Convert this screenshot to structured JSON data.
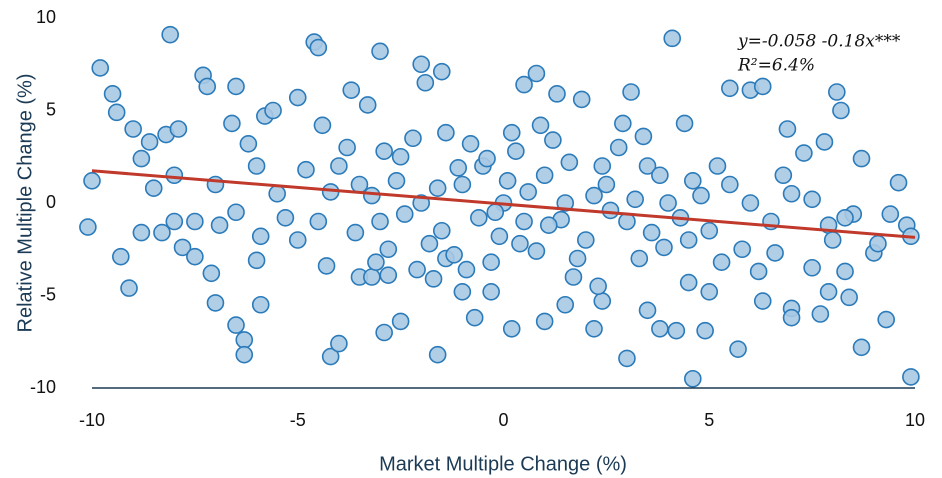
{
  "chart_data": {
    "type": "scatter",
    "x_label": "Market Multiple Change  (%)",
    "y_label": "Relative Multiple Change  (%)",
    "annotations": [
      "y=-0.058 -0.18x***",
      "R²=6.4%"
    ],
    "trendline": {
      "intercept": -0.058,
      "slope": -0.18,
      "color": "#c0392b"
    },
    "point_fill": "#a9c9e4",
    "point_stroke": "#2b7bba",
    "axis_color": "#1b3a55",
    "xlim": [
      -10,
      10
    ],
    "xticks": [
      -10,
      -5,
      0,
      5,
      10
    ],
    "ylim": [
      -10,
      10
    ],
    "yticks": [
      -10,
      -5,
      0,
      5,
      10
    ],
    "grid": false,
    "x": [
      -10,
      -10.1,
      -9.8,
      -9.5,
      -9.4,
      -9.3,
      -9.1,
      -9,
      -8.8,
      -8.8,
      -8.5,
      -8.3,
      -8.2,
      -8.1,
      -8,
      -7.9,
      -7.8,
      -7.5,
      -7.3,
      -7.2,
      -7.1,
      -7,
      -6.9,
      -6.6,
      -6.5,
      -6.5,
      -6.3,
      -6.3,
      -6,
      -5.9,
      -5.8,
      -5.6,
      -5,
      -4.6,
      -4.5,
      -4.3,
      -4.2,
      -4,
      -3.7,
      -3.5,
      -3.2,
      -3,
      -2.9,
      -2.8,
      -2.5,
      -2,
      -1.9,
      -1.7,
      -1.6,
      -1.5,
      -1.4,
      -1,
      -0.7,
      -0.3,
      0.2,
      0.5,
      0.8,
      1,
      1.3,
      1.5,
      1.9,
      2.2,
      2.4,
      3,
      3.1,
      3.5,
      3.8,
      4.1,
      4.2,
      4.5,
      4.6,
      4.9,
      5,
      5.3,
      5.5,
      5.7,
      6,
      6.3,
      6.3,
      6.6,
      6.9,
      7,
      7,
      7.3,
      7.5,
      7.7,
      7.8,
      7.9,
      8.1,
      8.2,
      8.3,
      8.4,
      8.5,
      8.7,
      8.7,
      9,
      9.1,
      9.3,
      9.4,
      9.6,
      9.8,
      9.9,
      9.9,
      8.3,
      7.9,
      7.5,
      -4,
      -3.5,
      -3,
      -2.5,
      -2,
      -1.5,
      -1,
      -0.5,
      0,
      0.5,
      1,
      1.5,
      2,
      2.5,
      3,
      3.5,
      4,
      4.5,
      -4.5,
      -3.8,
      -2.8,
      -2.2,
      -1.2,
      -0.8,
      0.3,
      0.8,
      1.2,
      1.8,
      2.8,
      3.3,
      3.8,
      4.3,
      -5.5,
      -5,
      -6,
      -6.5,
      -7,
      -7.5,
      5.5,
      5,
      6,
      6.5,
      7,
      5.8,
      -0.2,
      0.6,
      -0.6,
      1.4,
      -1.6,
      2.2,
      -2.4,
      3.2,
      -3.2,
      4.6,
      -4.2,
      0.1,
      -0.1,
      1.1,
      -1.1,
      2.6,
      -2.6,
      3.6,
      -3.6,
      0.4,
      -0.4,
      1.6,
      -1.8,
      2.4,
      -2.9,
      3.9,
      -4.8,
      4.8,
      -5.3,
      5.2,
      0.9,
      -0.9,
      1.7,
      -1.4,
      2.9,
      -3.1,
      3.4,
      -2.1,
      0.2,
      -0.3,
      6.8,
      -6.2,
      -8,
      8,
      -8.6,
      -5.9,
      6.2,
      -4.4,
      4.4,
      -3.3,
      2.3
    ],
    "y": [
      1.2,
      -1.3,
      7.3,
      5.9,
      4.9,
      -2.9,
      -4.6,
      4,
      2.4,
      -1.6,
      0.8,
      -1.6,
      3.7,
      9.1,
      -1,
      4,
      -2.4,
      -2.9,
      6.9,
      6.3,
      -3.8,
      -5.4,
      -1.2,
      4.3,
      6.3,
      -6.6,
      -7.4,
      -8.2,
      -3.1,
      -5.5,
      4.7,
      5,
      5.7,
      8.7,
      8.4,
      -3.4,
      -8.3,
      -7.6,
      6.1,
      -4,
      -4,
      8.2,
      -7,
      -3.9,
      -6.4,
      7.5,
      6.5,
      -4.1,
      -8.2,
      7.1,
      -3,
      -4.8,
      -6.2,
      -4.8,
      -6.8,
      6.4,
      7,
      -6.4,
      5.9,
      -5.5,
      5.6,
      -6.8,
      -5.3,
      -8.4,
      6,
      -5.8,
      -6.8,
      8.9,
      -6.9,
      -4.3,
      -9.5,
      -6.9,
      -4.8,
      -3.2,
      6.2,
      -7.9,
      6.1,
      6.3,
      -5.3,
      -2.7,
      4,
      -5.7,
      -6.2,
      2.7,
      -3.5,
      -6,
      3.3,
      -4.8,
      6,
      5,
      -3.7,
      -5.1,
      -0.6,
      -7.8,
      2.4,
      -2.7,
      -2.2,
      -6.3,
      -0.6,
      1.1,
      -1.2,
      -1.8,
      -9.4,
      -0.8,
      -1.2,
      0.2,
      2,
      1,
      -1,
      2.5,
      0,
      -1.5,
      1,
      2,
      0,
      -1,
      1.5,
      0,
      -2,
      1,
      -1,
      2,
      0,
      -2,
      -1,
      3,
      -2.5,
      3.5,
      -2.8,
      3.2,
      2.8,
      -2.6,
      3.4,
      -3,
      3,
      -3,
      1.5,
      -0.8,
      0.5,
      -2,
      2,
      -0.5,
      1,
      -1,
      1,
      -1.5,
      0,
      -1,
      0.5,
      -2.5,
      -0.5,
      0.6,
      -0.8,
      -0.9,
      0.8,
      0.4,
      -0.6,
      0.2,
      0.4,
      1.2,
      0.6,
      1.2,
      -1.8,
      -1.2,
      1.9,
      -0.4,
      1.2,
      -1.6,
      -1.6,
      -2.2,
      2.4,
      2.2,
      -2.2,
      2,
      2.8,
      -2.4,
      1.8,
      0.4,
      -0.8,
      2,
      4.2,
      -3.6,
      -4,
      3.8,
      4.3,
      -3.2,
      3.6,
      -3.6,
      3.8,
      -3.2,
      1.5,
      3.2,
      1.5,
      -2,
      3.3,
      -1.8,
      -3.7,
      4.2,
      4.3,
      5.3,
      -4.5
    ]
  }
}
